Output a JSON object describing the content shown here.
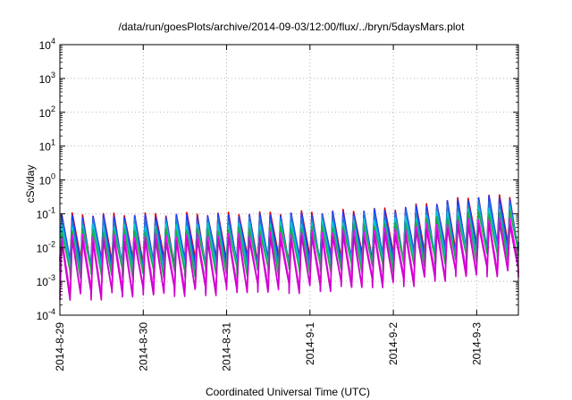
{
  "chart_data": {
    "type": "line",
    "title": "/data/run/goesPlots/archive/2014-09-03/12:00/flux/../bryn/5daysMars.plot",
    "xlabel": "Coordinated Universal Time (UTC)",
    "ylabel": "cSv/day",
    "y_scale": "log",
    "ylim": [
      0.0001,
      10000
    ],
    "xlim": [
      "2014-08-29T00:00",
      "2014-09-03T12:00"
    ],
    "grid": true,
    "legend": "none",
    "x_ticks": [
      "2014-8-29",
      "2014-8-30",
      "2014-8-31",
      "2014-9-1",
      "2014-9-2",
      "2014-9-3"
    ],
    "y_ticks": [
      {
        "base": "10",
        "exp": "-4"
      },
      {
        "base": "10",
        "exp": "-3"
      },
      {
        "base": "10",
        "exp": "-2"
      },
      {
        "base": "10",
        "exp": "-1"
      },
      {
        "base": "10",
        "exp": "0"
      },
      {
        "base": "10",
        "exp": "1"
      },
      {
        "base": "10",
        "exp": "2"
      },
      {
        "base": "10",
        "exp": "3"
      },
      {
        "base": "10",
        "exp": "4"
      }
    ],
    "series": [
      {
        "color": "#dd0000",
        "peaks": [
          0.095,
          0.095,
          0.1,
          0.11,
          0.14,
          0.33
        ],
        "troughs": [
          0.004,
          0.004,
          0.0045,
          0.005,
          0.006,
          0.012
        ]
      },
      {
        "color": "#1a3cff",
        "peaks": [
          0.085,
          0.085,
          0.09,
          0.1,
          0.13,
          0.3
        ],
        "troughs": [
          0.0035,
          0.0035,
          0.004,
          0.0045,
          0.0055,
          0.011
        ]
      },
      {
        "color": "#2277dd",
        "peaks": [
          0.065,
          0.065,
          0.07,
          0.08,
          0.1,
          0.22
        ],
        "troughs": [
          0.0028,
          0.0028,
          0.003,
          0.0035,
          0.0045,
          0.009
        ]
      },
      {
        "color": "#00cccc",
        "peaks": [
          0.045,
          0.045,
          0.05,
          0.055,
          0.07,
          0.15
        ],
        "troughs": [
          0.0022,
          0.0022,
          0.0025,
          0.003,
          0.0035,
          0.0075
        ]
      },
      {
        "color": "#22aa44",
        "peaks": [
          0.032,
          0.032,
          0.035,
          0.04,
          0.05,
          0.11
        ],
        "troughs": [
          0.0018,
          0.0018,
          0.002,
          0.0024,
          0.003,
          0.006
        ]
      },
      {
        "color": "#ff00ff",
        "peaks": [
          0.022,
          0.022,
          0.024,
          0.028,
          0.035,
          0.07
        ],
        "troughs": [
          0.0005,
          0.0006,
          0.0007,
          0.0008,
          0.0012,
          0.0024
        ]
      },
      {
        "color": "#cc00cc",
        "peaks": [
          0.016,
          0.016,
          0.018,
          0.02,
          0.025,
          0.05
        ],
        "troughs": [
          0.0004,
          0.0005,
          0.0006,
          0.0007,
          0.001,
          0.002
        ]
      }
    ],
    "cycles_per_day": 8
  }
}
